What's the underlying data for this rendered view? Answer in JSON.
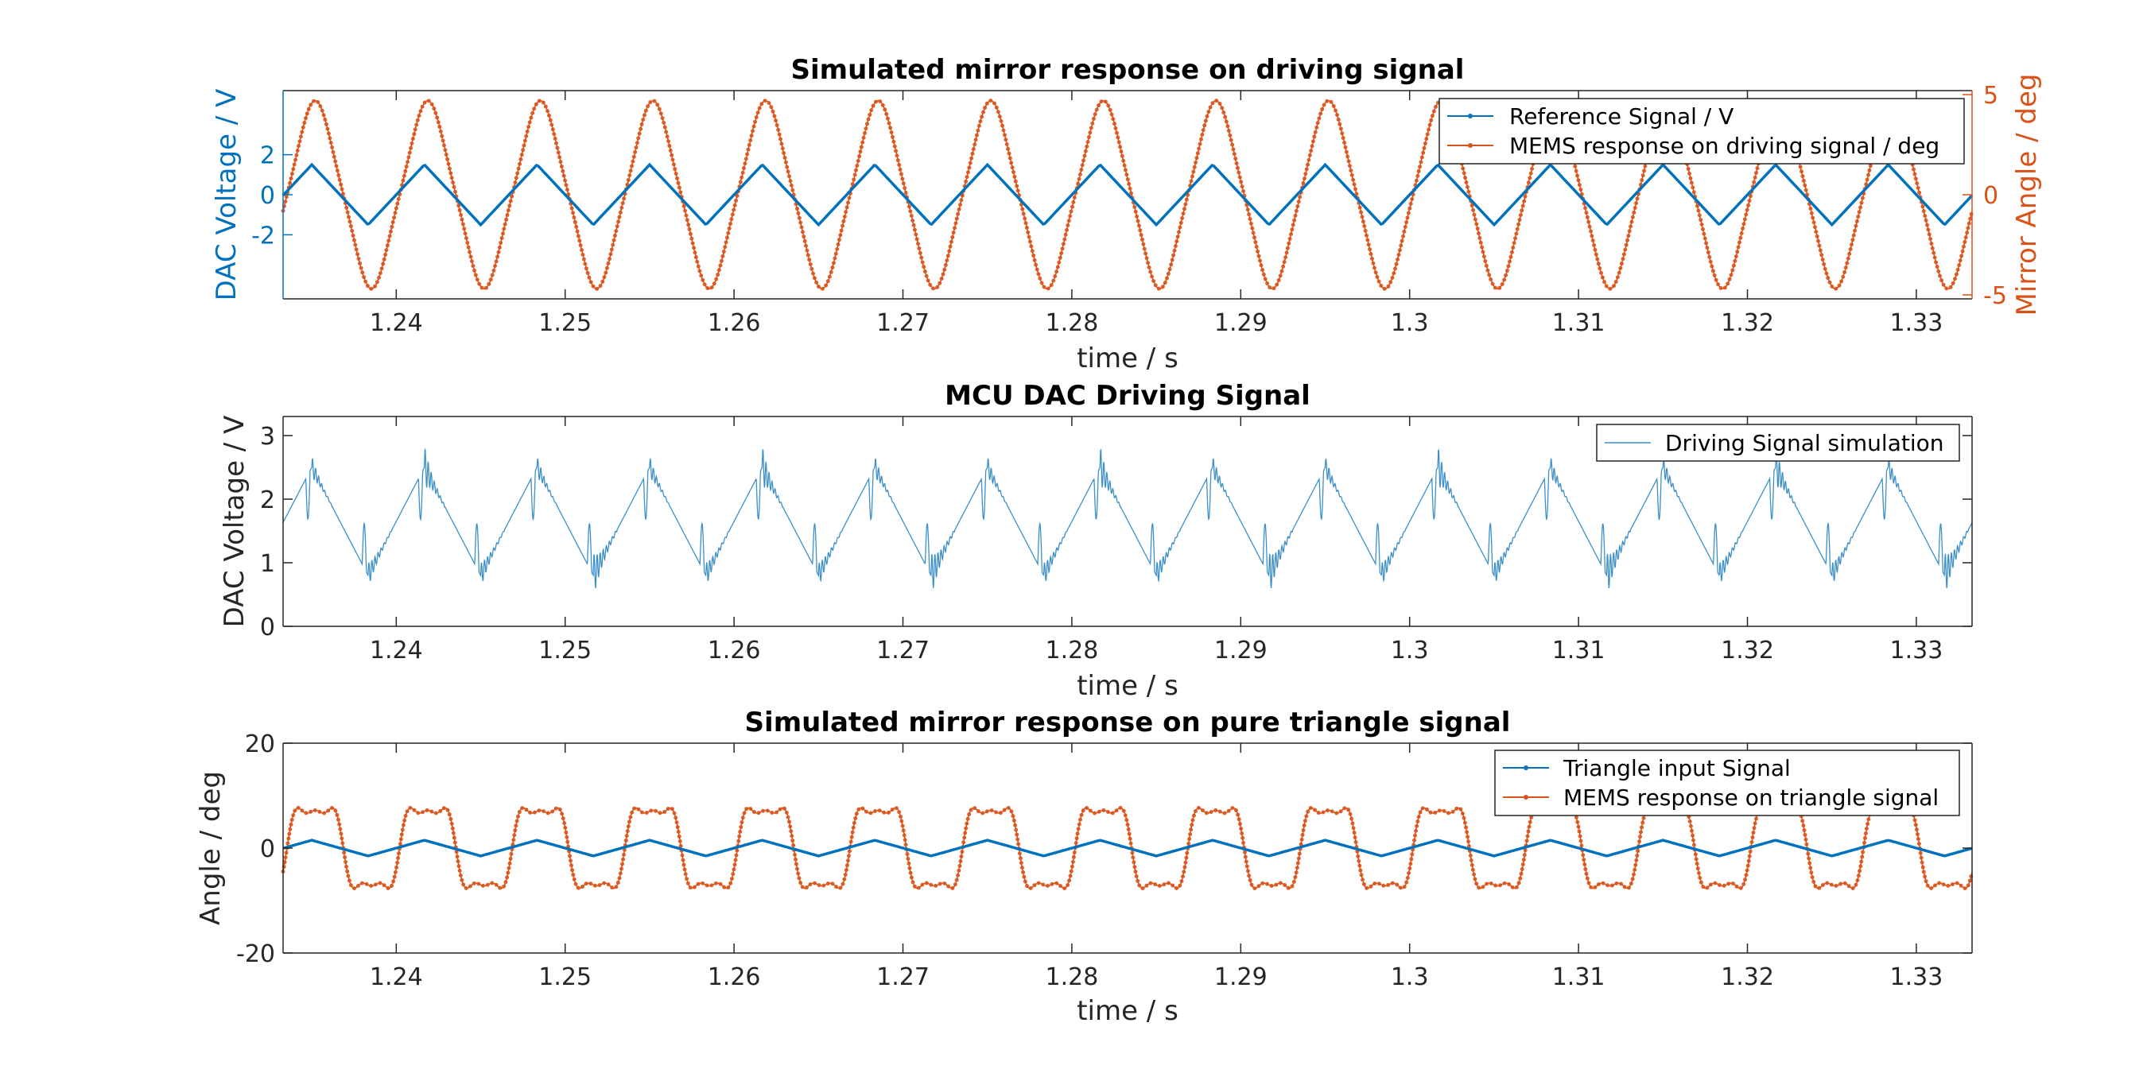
{
  "colors": {
    "blue": "#0072BD",
    "orange": "#D95319",
    "axis": "#262626",
    "lightblue": "#3C8FC8"
  },
  "chart_data": [
    {
      "id": "p1",
      "type": "line",
      "title": "Simulated mirror response on driving signal",
      "xlabel": "time / s",
      "ylabel_left": "DAC Voltage / V",
      "ylabel_right": "Mirror Angle / deg",
      "xlim": [
        1.2333,
        1.3333
      ],
      "x_ticks": [
        1.24,
        1.25,
        1.26,
        1.27,
        1.28,
        1.29,
        1.3,
        1.31,
        1.32,
        1.33
      ],
      "x_tick_labels": [
        "1.24",
        "1.25",
        "1.26",
        "1.27",
        "1.28",
        "1.29",
        "1.3",
        "1.31",
        "1.32",
        "1.33"
      ],
      "ylim_left": [
        -5.2,
        5.2
      ],
      "y_ticks_left": [
        -2,
        0,
        2
      ],
      "y_tick_labels_left": [
        "-2",
        "0",
        "2"
      ],
      "ylim_right": [
        -5.2,
        5.2
      ],
      "y_ticks_right": [
        -5,
        0,
        5
      ],
      "y_tick_labels_right": [
        "-5",
        "0",
        "5"
      ],
      "legend": {
        "position": "top-right",
        "entries": [
          "Reference Signal / V",
          "MEMS response on driving signal / deg"
        ]
      },
      "series": [
        {
          "name": "Reference Signal / V",
          "axis": "left",
          "shape": "triangle",
          "amplitude": 1.5,
          "period_s": 0.006667,
          "peak_time_s": 1.235
        },
        {
          "name": "MEMS response on driving signal / deg",
          "axis": "right",
          "shape": "smoothed-triangle",
          "amplitude": 4.7,
          "period_s": 0.006667,
          "peak_time_s": 1.2352
        }
      ]
    },
    {
      "id": "p2",
      "type": "line",
      "title": "MCU DAC Driving Signal",
      "xlabel": "time / s",
      "ylabel": "DAC Voltage / V",
      "xlim": [
        1.2333,
        1.3333
      ],
      "x_ticks": [
        1.24,
        1.25,
        1.26,
        1.27,
        1.28,
        1.29,
        1.3,
        1.31,
        1.32,
        1.33
      ],
      "x_tick_labels": [
        "1.24",
        "1.25",
        "1.26",
        "1.27",
        "1.28",
        "1.29",
        "1.3",
        "1.31",
        "1.32",
        "1.33"
      ],
      "ylim": [
        0,
        3.3
      ],
      "y_ticks": [
        0,
        1,
        2,
        3
      ],
      "y_tick_labels": [
        "0",
        "1",
        "2",
        "3"
      ],
      "legend": {
        "position": "top-right",
        "entries": [
          "Driving Signal simulation"
        ]
      },
      "series": [
        {
          "name": "Driving Signal simulation",
          "shape": "triangle-with-ringing",
          "offset": 1.65,
          "amplitude": 0.85,
          "period_s": 0.006667,
          "peak_time_s": 1.235,
          "ringing_peak_value": 2.65,
          "ringing_trough_value": 0.65
        }
      ]
    },
    {
      "id": "p3",
      "type": "line",
      "title": "Simulated mirror response on pure triangle signal",
      "xlabel": "time / s",
      "ylabel": "Angle / deg",
      "xlim": [
        1.2333,
        1.3333
      ],
      "x_ticks": [
        1.24,
        1.25,
        1.26,
        1.27,
        1.28,
        1.29,
        1.3,
        1.31,
        1.32,
        1.33
      ],
      "x_tick_labels": [
        "1.24",
        "1.25",
        "1.26",
        "1.27",
        "1.28",
        "1.29",
        "1.3",
        "1.31",
        "1.32",
        "1.33"
      ],
      "ylim": [
        -20,
        20
      ],
      "y_ticks": [
        -20,
        0,
        20
      ],
      "y_tick_labels": [
        "-20",
        "0",
        "20"
      ],
      "legend": {
        "position": "top-right",
        "entries": [
          "Triangle input Signal",
          "MEMS response on triangle signal"
        ]
      },
      "series": [
        {
          "name": "Triangle input Signal",
          "shape": "triangle",
          "amplitude": 1.5,
          "period_s": 0.006667,
          "peak_time_s": 1.235
        },
        {
          "name": "MEMS response on triangle signal",
          "shape": "flat-top-oscillation",
          "amplitude": 7.2,
          "ripple": 1.2,
          "period_s": 0.006667,
          "peak_time_s": 1.2352
        }
      ]
    }
  ]
}
